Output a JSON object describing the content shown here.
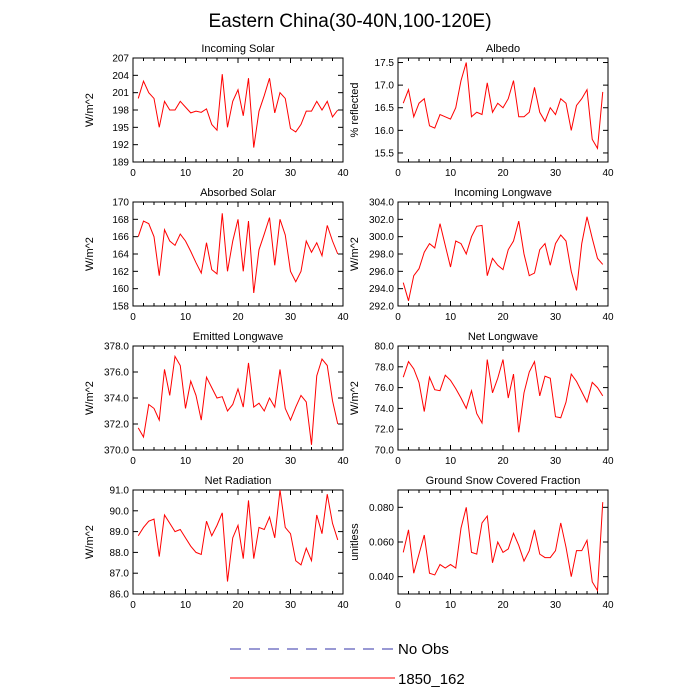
{
  "figure_title": "Eastern China(30-40N,100-120E)",
  "legend": {
    "entries": [
      {
        "label": "No Obs",
        "color": "#3333aa",
        "dashed": true
      },
      {
        "label": "1850_162",
        "color": "#ff0000",
        "dashed": false
      }
    ]
  },
  "chart_data": [
    {
      "type": "line",
      "title": "Incoming Solar",
      "ylabel": "W/m^2",
      "xlim": [
        0,
        40
      ],
      "ylim": [
        189,
        207
      ],
      "xticks": [
        0,
        10,
        20,
        30,
        40
      ],
      "yticks": [
        "189",
        "192",
        "195",
        "198",
        "201",
        "204",
        "207"
      ],
      "yticks_values": [
        189,
        192,
        195,
        198,
        201,
        204,
        207
      ],
      "series": [
        {
          "name": "1850_162",
          "color": "#ff0000",
          "x": [
            1,
            2,
            3,
            4,
            5,
            6,
            7,
            8,
            9,
            10,
            11,
            12,
            13,
            14,
            15,
            16,
            17,
            18,
            19,
            20,
            21,
            22,
            23,
            24,
            25,
            26,
            27,
            28,
            29,
            30,
            31,
            32,
            33,
            34,
            35,
            36,
            37,
            38,
            39
          ],
          "y": [
            200.0,
            203.0,
            201.0,
            200.0,
            195.0,
            199.5,
            198.0,
            198.0,
            199.5,
            198.5,
            197.5,
            197.8,
            197.6,
            198.2,
            195.5,
            194.5,
            204.2,
            195.0,
            199.5,
            201.5,
            197.0,
            203.5,
            191.5,
            197.8,
            200.5,
            203.5,
            197.5,
            201.0,
            200.0,
            194.8,
            194.2,
            195.5,
            197.8,
            197.8,
            199.5,
            198.0,
            199.5,
            196.8,
            198.0
          ]
        }
      ]
    },
    {
      "type": "line",
      "title": "Albedo",
      "ylabel": "% reflected",
      "xlim": [
        0,
        40
      ],
      "ylim": [
        15.3,
        17.6
      ],
      "xticks": [
        0,
        10,
        20,
        30,
        40
      ],
      "yticks": [
        "15.5",
        "16.0",
        "16.5",
        "17.0",
        "17.5"
      ],
      "yticks_values": [
        15.5,
        16.0,
        16.5,
        17.0,
        17.5
      ],
      "series": [
        {
          "name": "1850_162",
          "color": "#ff0000",
          "x": [
            1,
            2,
            3,
            4,
            5,
            6,
            7,
            8,
            9,
            10,
            11,
            12,
            13,
            14,
            15,
            16,
            17,
            18,
            19,
            20,
            21,
            22,
            23,
            24,
            25,
            26,
            27,
            28,
            29,
            30,
            31,
            32,
            33,
            34,
            35,
            36,
            37,
            38,
            39
          ],
          "y": [
            16.6,
            16.9,
            16.3,
            16.6,
            16.7,
            16.1,
            16.05,
            16.35,
            16.3,
            16.25,
            16.5,
            17.1,
            17.5,
            16.3,
            16.4,
            16.35,
            17.05,
            16.4,
            16.6,
            16.5,
            16.7,
            17.1,
            16.3,
            16.3,
            16.4,
            16.95,
            16.4,
            16.2,
            16.5,
            16.35,
            16.7,
            16.6,
            16.0,
            16.55,
            16.7,
            16.9,
            15.8,
            15.6,
            16.85
          ]
        }
      ]
    },
    {
      "type": "line",
      "title": "Absorbed Solar",
      "ylabel": "W/m^2",
      "xlim": [
        0,
        40
      ],
      "ylim": [
        158,
        170
      ],
      "xticks": [
        0,
        10,
        20,
        30,
        40
      ],
      "yticks": [
        "158",
        "160",
        "162",
        "164",
        "166",
        "168",
        "170"
      ],
      "yticks_values": [
        158,
        160,
        162,
        164,
        166,
        168,
        170
      ],
      "series": [
        {
          "name": "1850_162",
          "color": "#ff0000",
          "x": [
            1,
            2,
            3,
            4,
            5,
            6,
            7,
            8,
            9,
            10,
            11,
            12,
            13,
            14,
            15,
            16,
            17,
            18,
            19,
            20,
            21,
            22,
            23,
            24,
            25,
            26,
            27,
            28,
            29,
            30,
            31,
            32,
            33,
            34,
            35,
            36,
            37,
            38,
            39
          ],
          "y": [
            166.0,
            167.8,
            167.5,
            166.0,
            161.5,
            166.8,
            165.5,
            165.0,
            166.3,
            165.5,
            164.3,
            163.0,
            161.8,
            165.3,
            162.2,
            161.7,
            168.7,
            162.0,
            165.5,
            168.0,
            162.0,
            167.8,
            159.5,
            164.5,
            166.3,
            168.2,
            162.7,
            168.0,
            166.2,
            162.0,
            160.8,
            162.0,
            165.5,
            164.2,
            165.3,
            163.8,
            167.3,
            165.5,
            164.0
          ]
        }
      ]
    },
    {
      "type": "line",
      "title": "Incoming Longwave",
      "ylabel": "W/m^2",
      "xlim": [
        0,
        40
      ],
      "ylim": [
        292,
        304
      ],
      "xticks": [
        0,
        10,
        20,
        30,
        40
      ],
      "yticks": [
        "292.0",
        "294.0",
        "296.0",
        "298.0",
        "300.0",
        "302.0",
        "304.0"
      ],
      "yticks_values": [
        292,
        294,
        296,
        298,
        300,
        302,
        304
      ],
      "series": [
        {
          "name": "1850_162",
          "color": "#ff0000",
          "x": [
            1,
            2,
            3,
            4,
            5,
            6,
            7,
            8,
            9,
            10,
            11,
            12,
            13,
            14,
            15,
            16,
            17,
            18,
            19,
            20,
            21,
            22,
            23,
            24,
            25,
            26,
            27,
            28,
            29,
            30,
            31,
            32,
            33,
            34,
            35,
            36,
            37,
            38,
            39
          ],
          "y": [
            294.7,
            292.6,
            295.5,
            296.3,
            298.2,
            299.2,
            298.7,
            301.5,
            299.0,
            296.5,
            299.5,
            299.2,
            298.0,
            300.0,
            301.2,
            301.3,
            295.5,
            297.5,
            296.7,
            296.2,
            298.5,
            299.5,
            301.8,
            298.0,
            295.5,
            295.8,
            298.5,
            299.2,
            296.7,
            299.2,
            300.2,
            299.5,
            296.0,
            293.8,
            299.2,
            302.3,
            299.8,
            297.5,
            296.8
          ]
        }
      ]
    },
    {
      "type": "line",
      "title": "Emitted Longwave",
      "ylabel": "W/m^2",
      "xlim": [
        0,
        40
      ],
      "ylim": [
        370,
        378
      ],
      "xticks": [
        0,
        10,
        20,
        30,
        40
      ],
      "yticks": [
        "370.0",
        "372.0",
        "374.0",
        "376.0",
        "378.0"
      ],
      "yticks_values": [
        370,
        372,
        374,
        376,
        378
      ],
      "series": [
        {
          "name": "1850_162",
          "color": "#ff0000",
          "x": [
            1,
            2,
            3,
            4,
            5,
            6,
            7,
            8,
            9,
            10,
            11,
            12,
            13,
            14,
            15,
            16,
            17,
            18,
            19,
            20,
            21,
            22,
            23,
            24,
            25,
            26,
            27,
            28,
            29,
            30,
            31,
            32,
            33,
            34,
            35,
            36,
            37,
            38,
            39
          ],
          "y": [
            371.7,
            371.0,
            373.5,
            373.2,
            372.3,
            376.2,
            374.2,
            377.2,
            376.5,
            373.2,
            375.3,
            374.2,
            372.3,
            375.6,
            374.8,
            374.0,
            374.1,
            373.0,
            373.5,
            374.7,
            373.3,
            376.7,
            373.3,
            373.6,
            373.0,
            374.0,
            373.3,
            376.2,
            373.2,
            372.3,
            373.3,
            374.2,
            373.7,
            370.4,
            375.7,
            377.0,
            376.5,
            373.8,
            372.0
          ]
        }
      ]
    },
    {
      "type": "line",
      "title": "Net Longwave",
      "ylabel": "W/m^2",
      "xlim": [
        0,
        40
      ],
      "ylim": [
        70,
        80
      ],
      "xticks": [
        0,
        10,
        20,
        30,
        40
      ],
      "yticks": [
        "70.0",
        "72.0",
        "74.0",
        "76.0",
        "78.0",
        "80.0"
      ],
      "yticks_values": [
        70,
        72,
        74,
        76,
        78,
        80
      ],
      "series": [
        {
          "name": "1850_162",
          "color": "#ff0000",
          "x": [
            1,
            2,
            3,
            4,
            5,
            6,
            7,
            8,
            9,
            10,
            11,
            12,
            13,
            14,
            15,
            16,
            17,
            18,
            19,
            20,
            21,
            22,
            23,
            24,
            25,
            26,
            27,
            28,
            29,
            30,
            31,
            32,
            33,
            34,
            35,
            36,
            37,
            38,
            39
          ],
          "y": [
            77.0,
            78.5,
            77.8,
            76.5,
            73.7,
            77.0,
            75.8,
            75.7,
            77.2,
            76.7,
            75.9,
            75.0,
            74.0,
            75.7,
            73.5,
            72.6,
            78.7,
            75.5,
            76.9,
            78.7,
            75.0,
            77.3,
            71.7,
            75.5,
            77.5,
            78.5,
            75.2,
            77.1,
            76.9,
            73.2,
            73.1,
            74.6,
            77.3,
            76.6,
            75.6,
            74.6,
            76.5,
            76.0,
            75.2
          ]
        }
      ]
    },
    {
      "type": "line",
      "title": "Net Radiation",
      "ylabel": "W/m^2",
      "xlim": [
        0,
        40
      ],
      "ylim": [
        86,
        91
      ],
      "xticks": [
        0,
        10,
        20,
        30,
        40
      ],
      "yticks": [
        "86.0",
        "87.0",
        "88.0",
        "89.0",
        "90.0",
        "91.0"
      ],
      "yticks_values": [
        86,
        87,
        88,
        89,
        90,
        91
      ],
      "series": [
        {
          "name": "1850_162",
          "color": "#ff0000",
          "x": [
            1,
            2,
            3,
            4,
            5,
            6,
            7,
            8,
            9,
            10,
            11,
            12,
            13,
            14,
            15,
            16,
            17,
            18,
            19,
            20,
            21,
            22,
            23,
            24,
            25,
            26,
            27,
            28,
            29,
            30,
            31,
            32,
            33,
            34,
            35,
            36,
            37,
            38,
            39
          ],
          "y": [
            88.8,
            89.2,
            89.5,
            89.6,
            87.8,
            89.8,
            89.4,
            89.0,
            89.1,
            88.7,
            88.3,
            88.0,
            87.9,
            89.5,
            88.8,
            89.3,
            89.9,
            86.6,
            88.7,
            89.3,
            87.7,
            90.5,
            87.7,
            89.2,
            89.1,
            89.7,
            88.7,
            91.0,
            89.2,
            88.9,
            87.6,
            87.4,
            88.2,
            87.6,
            89.8,
            88.9,
            90.8,
            89.4,
            88.6
          ]
        }
      ]
    },
    {
      "type": "line",
      "title": "Ground Snow Covered Fraction",
      "ylabel": "unitless",
      "xlim": [
        0,
        40
      ],
      "ylim": [
        0.03,
        0.09
      ],
      "xticks": [
        0,
        10,
        20,
        30,
        40
      ],
      "yticks": [
        "0.040",
        "0.060",
        "0.080"
      ],
      "yticks_values": [
        0.04,
        0.06,
        0.08
      ],
      "series": [
        {
          "name": "1850_162",
          "color": "#ff0000",
          "x": [
            1,
            2,
            3,
            4,
            5,
            6,
            7,
            8,
            9,
            10,
            11,
            12,
            13,
            14,
            15,
            16,
            17,
            18,
            19,
            20,
            21,
            22,
            23,
            24,
            25,
            26,
            27,
            28,
            29,
            30,
            31,
            32,
            33,
            34,
            35,
            36,
            37,
            38,
            39
          ],
          "y": [
            0.054,
            0.067,
            0.042,
            0.053,
            0.064,
            0.042,
            0.041,
            0.047,
            0.045,
            0.047,
            0.045,
            0.068,
            0.08,
            0.054,
            0.053,
            0.071,
            0.075,
            0.048,
            0.06,
            0.054,
            0.056,
            0.065,
            0.058,
            0.049,
            0.055,
            0.067,
            0.053,
            0.051,
            0.051,
            0.055,
            0.071,
            0.057,
            0.04,
            0.055,
            0.055,
            0.061,
            0.037,
            0.032,
            0.083
          ]
        }
      ]
    }
  ]
}
